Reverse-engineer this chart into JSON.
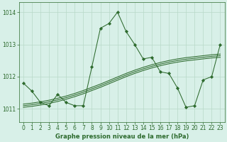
{
  "title": "Graphe pression niveau de la mer (hPa)",
  "y_main": [
    1011.8,
    1011.55,
    1011.2,
    1011.1,
    1011.45,
    1011.2,
    1011.1,
    1011.1,
    1012.3,
    1013.5,
    1013.65,
    1014.0,
    1013.4,
    1013.0,
    1012.55,
    1012.6,
    1012.15,
    1012.1,
    1011.65,
    1011.05,
    1011.1,
    1011.9,
    1012.0,
    1013.0
  ],
  "y_s1": [
    1011.05,
    1011.08,
    1011.12,
    1011.17,
    1011.23,
    1011.3,
    1011.38,
    1011.47,
    1011.57,
    1011.67,
    1011.78,
    1011.89,
    1012.0,
    1012.1,
    1012.19,
    1012.27,
    1012.34,
    1012.4,
    1012.45,
    1012.49,
    1012.52,
    1012.55,
    1012.58,
    1012.6
  ],
  "y_s2": [
    1011.1,
    1011.13,
    1011.17,
    1011.22,
    1011.28,
    1011.35,
    1011.43,
    1011.52,
    1011.62,
    1011.72,
    1011.83,
    1011.94,
    1012.05,
    1012.15,
    1012.24,
    1012.32,
    1012.39,
    1012.45,
    1012.5,
    1012.54,
    1012.57,
    1012.6,
    1012.63,
    1012.65
  ],
  "y_s3": [
    1011.15,
    1011.18,
    1011.22,
    1011.27,
    1011.33,
    1011.4,
    1011.48,
    1011.57,
    1011.67,
    1011.77,
    1011.88,
    1011.99,
    1012.1,
    1012.2,
    1012.29,
    1012.37,
    1012.44,
    1012.5,
    1012.55,
    1012.59,
    1012.62,
    1012.65,
    1012.68,
    1012.7
  ],
  "line_color": "#2d6a2d",
  "bg_color": "#d8f0e8",
  "grid_color": "#b8d8c8",
  "ylim_min": 1010.6,
  "ylim_max": 1014.3,
  "yticks": [
    1011,
    1012,
    1013,
    1014
  ],
  "xticks": [
    0,
    1,
    2,
    3,
    4,
    5,
    6,
    7,
    8,
    9,
    10,
    11,
    12,
    13,
    14,
    15,
    16,
    17,
    18,
    19,
    20,
    21,
    22,
    23
  ],
  "xlabel_size": 6.0,
  "tick_labelsize": 5.5,
  "marker_size": 2.2,
  "linewidth": 0.75
}
